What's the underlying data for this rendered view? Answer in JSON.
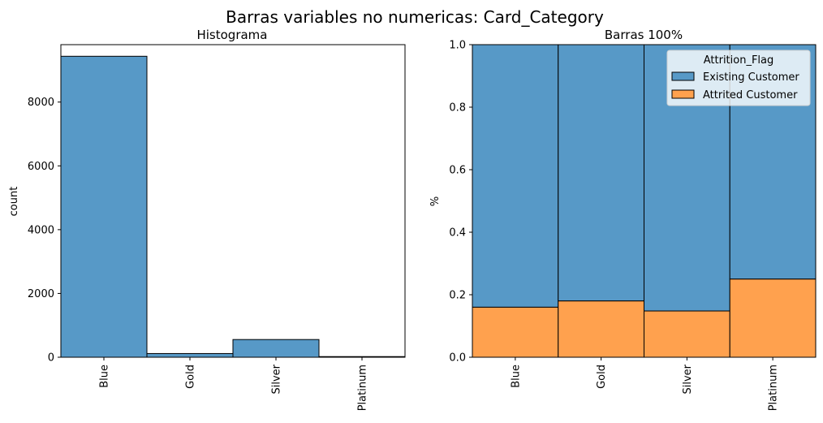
{
  "figure": {
    "title": "Barras variables no numericas: Card_Category"
  },
  "chart_data": [
    {
      "type": "bar",
      "title": "Histograma",
      "xlabel": "",
      "ylabel": "count",
      "categories": [
        "Blue",
        "Gold",
        "Silver",
        "Platinum"
      ],
      "values": [
        9436,
        116,
        555,
        20
      ],
      "ylim": [
        0,
        9800
      ],
      "yticks": [
        0,
        2000,
        4000,
        6000,
        8000
      ],
      "colors": {
        "bar": "#5799c7",
        "edge": "#000000"
      }
    },
    {
      "type": "bar",
      "stacked": true,
      "title": "Barras 100%",
      "xlabel": "",
      "ylabel": "%",
      "categories": [
        "Blue",
        "Gold",
        "Silver",
        "Platinum"
      ],
      "series": [
        {
          "name": "Existing Customer",
          "values": [
            0.84,
            0.82,
            0.852,
            0.75
          ],
          "color": "#5799c7"
        },
        {
          "name": "Attrited Customer",
          "values": [
            0.16,
            0.18,
            0.148,
            0.25
          ],
          "color": "#ffa14e"
        }
      ],
      "ylim": [
        0,
        1.0
      ],
      "yticks": [
        "0.0",
        "0.2",
        "0.4",
        "0.6",
        "0.8",
        "1.0"
      ],
      "legend": {
        "title": "Attrition_Flag",
        "position": "top-right"
      }
    }
  ]
}
